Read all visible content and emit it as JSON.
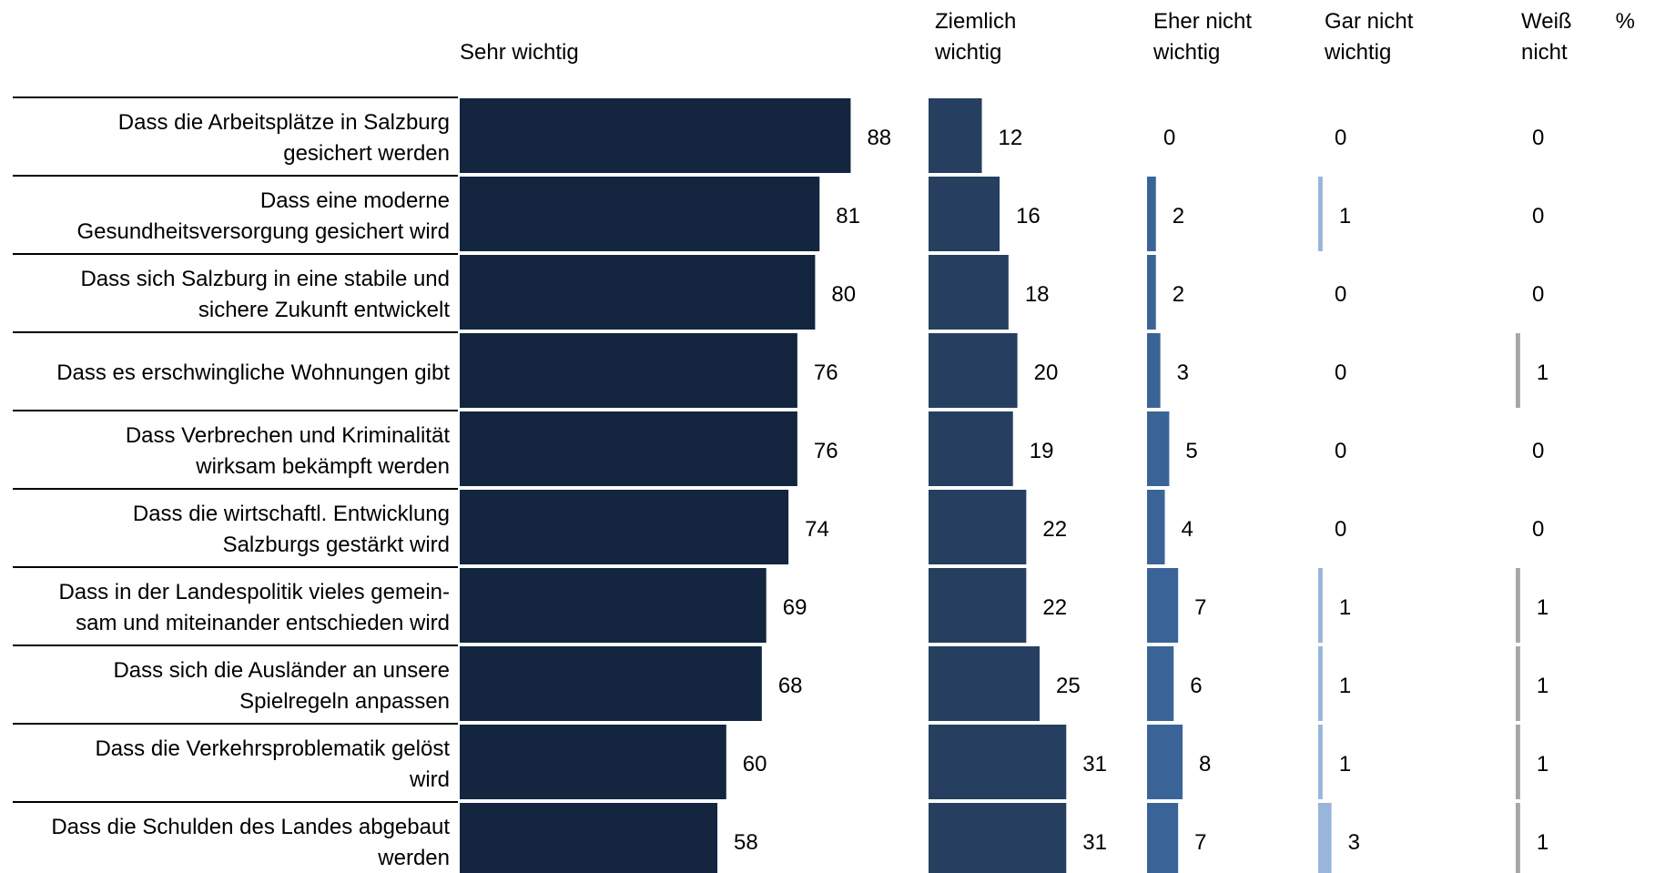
{
  "chart_data": {
    "type": "bar",
    "unit_label": "%",
    "columns": [
      {
        "key": "sehr",
        "header": [
          "",
          "Sehr wichtig"
        ],
        "color": "#13253f"
      },
      {
        "key": "ziemlich",
        "header": [
          "Ziemlich",
          "wichtig"
        ],
        "color": "#263f60"
      },
      {
        "key": "eher_nicht",
        "header": [
          "Eher nicht",
          "wichtig"
        ],
        "color": "#3a6497"
      },
      {
        "key": "gar_nicht",
        "header": [
          "Gar nicht",
          "wichtig"
        ],
        "color": "#99b5dc"
      },
      {
        "key": "weiss_nicht",
        "header": [
          "Weiß",
          "nicht"
        ],
        "color": "#a6a6a6"
      }
    ],
    "categories": [
      [
        "Dass die Arbeitsplätze in Salzburg",
        "gesichert werden"
      ],
      [
        "Dass eine moderne",
        "Gesundheitsversorgung gesichert wird"
      ],
      [
        "Dass sich Salzburg in eine stabile und",
        "sichere Zukunft entwickelt"
      ],
      [
        "Dass es erschwingliche Wohnungen gibt"
      ],
      [
        "Dass Verbrechen und Kriminalität",
        "wirksam bekämpft werden"
      ],
      [
        "Dass die wirtschaftl. Entwicklung",
        "Salzburgs gestärkt wird"
      ],
      [
        "Dass in der Landespolitik vieles gemein-",
        "sam und miteinander entschieden wird"
      ],
      [
        "Dass sich die Ausländer an unsere",
        "Spielregeln anpassen"
      ],
      [
        "Dass die Verkehrsproblematik gelöst",
        "wird"
      ],
      [
        "Dass die Schulden des Landes abgebaut",
        "werden"
      ]
    ],
    "series": [
      {
        "name": "Sehr wichtig",
        "values": [
          88,
          81,
          80,
          76,
          76,
          74,
          69,
          68,
          60,
          58
        ]
      },
      {
        "name": "Ziemlich wichtig",
        "values": [
          12,
          16,
          18,
          20,
          19,
          22,
          22,
          25,
          31,
          31
        ]
      },
      {
        "name": "Eher nicht wichtig",
        "values": [
          0,
          2,
          2,
          3,
          5,
          4,
          7,
          6,
          8,
          7
        ]
      },
      {
        "name": "Gar nicht wichtig",
        "values": [
          0,
          1,
          0,
          0,
          0,
          0,
          1,
          1,
          1,
          3
        ]
      },
      {
        "name": "Weiß nicht",
        "values": [
          0,
          0,
          0,
          1,
          0,
          0,
          1,
          1,
          1,
          1
        ]
      }
    ]
  }
}
